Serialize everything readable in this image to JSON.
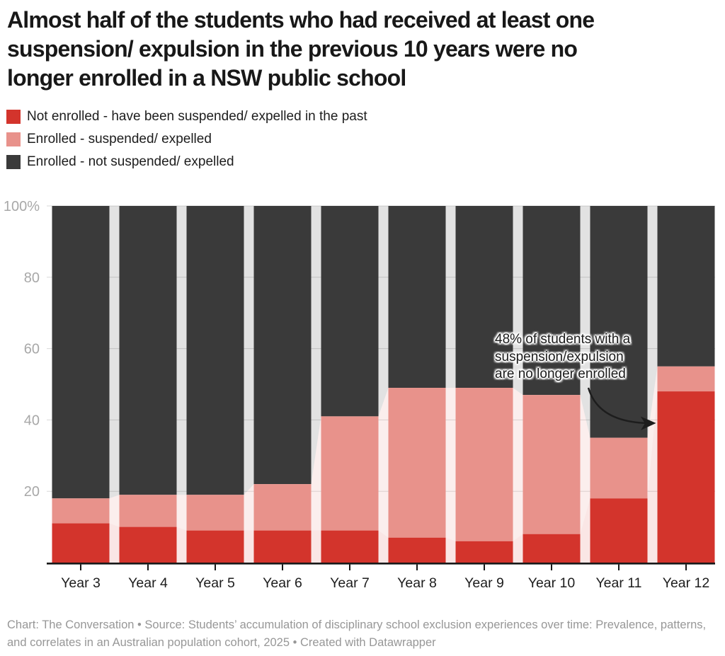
{
  "header": {
    "title_lines": [
      "Almost half of the students who had received at least one",
      "suspension/ expulsion in the previous 10 years were no",
      "longer enrolled in a NSW public school"
    ]
  },
  "legend": {
    "items": [
      {
        "label": "Not enrolled - have been suspended/ expelled in the past",
        "color": "#d3342c"
      },
      {
        "label": "Enrolled - suspended/ expelled",
        "color": "#e8928b"
      },
      {
        "label": "Enrolled - not suspended/ expelled",
        "color": "#3a3a3a"
      }
    ]
  },
  "chart_data": {
    "type": "bar",
    "variant": "stacked-100-percent-columns-with-connectors",
    "categories": [
      "Year 3",
      "Year 4",
      "Year 5",
      "Year 6",
      "Year 7",
      "Year 8",
      "Year 9",
      "Year 10",
      "Year 11",
      "Year 12"
    ],
    "series": [
      {
        "name": "Not enrolled - have been suspended/ expelled in the past",
        "color": "#d3342c",
        "values": [
          11,
          10,
          9,
          9,
          9,
          7,
          6,
          8,
          18,
          48
        ]
      },
      {
        "name": "Enrolled - suspended/ expelled",
        "color": "#e8928b",
        "values": [
          7,
          9,
          10,
          13,
          32,
          42,
          43,
          39,
          17,
          7
        ]
      },
      {
        "name": "Enrolled - not suspended/ expelled",
        "color": "#3a3a3a",
        "values": [
          82,
          81,
          81,
          78,
          59,
          51,
          51,
          53,
          65,
          45
        ]
      }
    ],
    "ylim": [
      0,
      100
    ],
    "y_ticks": [
      {
        "value": 100,
        "label": "100%"
      },
      {
        "value": 80,
        "label": "80"
      },
      {
        "value": 60,
        "label": "60"
      },
      {
        "value": 40,
        "label": "40"
      },
      {
        "value": 20,
        "label": "20"
      }
    ],
    "grid": true,
    "legend_position": "top-left",
    "annotation": {
      "lines": [
        "48% of students with a",
        "suspension/expulsion",
        "are no longer enrolled"
      ],
      "arrow_to": "Year 12"
    }
  },
  "footer": {
    "text": "Chart: The Conversation • Source: Students’ accumulation of disciplinary school exclusion experiences over time: Prevalence, patterns, and correlates in an Australian population cohort, 2025 • Created with Datawrapper"
  },
  "colors": {
    "grid": "#d9d9d9",
    "axis": "#181818",
    "tick_label": "#a8a8a8",
    "category_label": "#1d1d1d",
    "annotation_text": "#1d1d1d",
    "footer_text": "#979797",
    "background": "#ffffff"
  }
}
